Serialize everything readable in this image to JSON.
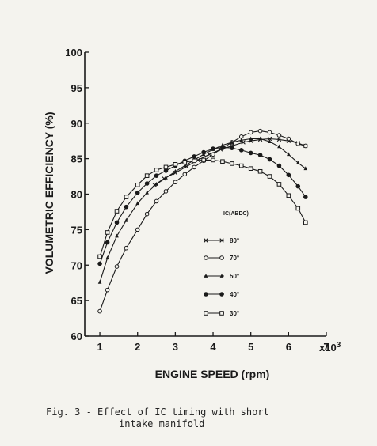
{
  "chart_data": {
    "type": "line",
    "title": "",
    "xlabel": "ENGINE SPEED (rpm)",
    "ylabel": "VOLUMETRIC EFFICIENCY (%)",
    "x_multiplier_label": "x10",
    "x_multiplier_exp": "3",
    "xlim": [
      0.6,
      7
    ],
    "ylim": [
      60,
      100
    ],
    "x_ticks": [
      1,
      2,
      3,
      4,
      5,
      6,
      7
    ],
    "y_ticks": [
      60,
      65,
      70,
      75,
      80,
      85,
      90,
      95,
      100
    ],
    "y_tick_labels": [
      "60",
      "65",
      "70",
      "75",
      "80",
      "85",
      "90",
      "95",
      "100"
    ],
    "legend_title": "IC(ABDC)",
    "legend_position": "center-right",
    "grid": false,
    "series": [
      {
        "name": "80°",
        "marker": "x",
        "x": [
          2.45,
          2.7,
          3.0,
          3.3,
          3.6,
          3.9,
          4.2,
          4.5,
          4.8,
          5.0,
          5.25,
          5.5,
          5.75,
          6.0,
          6.25,
          6.45
        ],
        "y": [
          81.3,
          82.2,
          83.0,
          83.9,
          84.8,
          85.6,
          86.3,
          86.8,
          87.3,
          87.5,
          87.7,
          87.8,
          87.7,
          87.5,
          87.2,
          86.8
        ]
      },
      {
        "name": "70°",
        "marker": "circle-open",
        "x": [
          1.0,
          1.2,
          1.45,
          1.7,
          2.0,
          2.25,
          2.5,
          2.75,
          3.0,
          3.25,
          3.5,
          3.75,
          4.0,
          4.25,
          4.5,
          4.75,
          5.0,
          5.25,
          5.5,
          5.75,
          6.0,
          6.25,
          6.45
        ],
        "y": [
          63.5,
          66.5,
          69.8,
          72.4,
          75.0,
          77.2,
          79.0,
          80.4,
          81.7,
          82.8,
          83.8,
          84.7,
          85.6,
          86.5,
          87.3,
          88.1,
          88.7,
          88.9,
          88.7,
          88.3,
          87.8,
          87.1,
          86.8
        ]
      },
      {
        "name": "50°",
        "marker": "triangle",
        "x": [
          1.0,
          1.2,
          1.45,
          1.7,
          2.0,
          2.25,
          2.5,
          2.75,
          3.0,
          3.25,
          3.5,
          3.75,
          4.0,
          4.25,
          4.5,
          4.75,
          5.0,
          5.25,
          5.5,
          5.75,
          6.0,
          6.25,
          6.45
        ],
        "y": [
          67.6,
          71.0,
          74.1,
          76.3,
          78.7,
          80.2,
          81.4,
          82.3,
          83.2,
          84.0,
          84.8,
          85.6,
          86.3,
          86.9,
          87.3,
          87.6,
          87.8,
          87.8,
          87.4,
          86.7,
          85.6,
          84.4,
          83.6
        ]
      },
      {
        "name": "40°",
        "marker": "circle-filled",
        "x": [
          1.0,
          1.2,
          1.45,
          1.7,
          2.0,
          2.25,
          2.5,
          2.75,
          3.0,
          3.25,
          3.5,
          3.75,
          4.0,
          4.25,
          4.5,
          4.75,
          5.0,
          5.25,
          5.5,
          5.75,
          6.0,
          6.25,
          6.45
        ],
        "y": [
          70.2,
          73.2,
          76.0,
          78.2,
          80.2,
          81.5,
          82.6,
          83.3,
          84.0,
          84.7,
          85.3,
          85.9,
          86.4,
          86.6,
          86.5,
          86.2,
          85.8,
          85.5,
          84.9,
          84.0,
          82.7,
          81.1,
          79.6
        ]
      },
      {
        "name": "30°",
        "marker": "square-open",
        "x": [
          1.0,
          1.2,
          1.45,
          1.7,
          2.0,
          2.25,
          2.5,
          2.75,
          3.0,
          3.25,
          3.5,
          3.75,
          4.0,
          4.25,
          4.5,
          4.75,
          5.0,
          5.25,
          5.5,
          5.75,
          6.0,
          6.25,
          6.45
        ],
        "y": [
          71.2,
          74.6,
          77.6,
          79.6,
          81.3,
          82.6,
          83.4,
          83.8,
          84.2,
          84.5,
          84.7,
          84.8,
          84.8,
          84.6,
          84.3,
          84.0,
          83.6,
          83.2,
          82.5,
          81.4,
          79.8,
          78.0,
          76.0
        ]
      }
    ]
  },
  "caption": {
    "line1": "Fig. 3 - Effect of IC timing with short",
    "line2": "intake manifold"
  }
}
